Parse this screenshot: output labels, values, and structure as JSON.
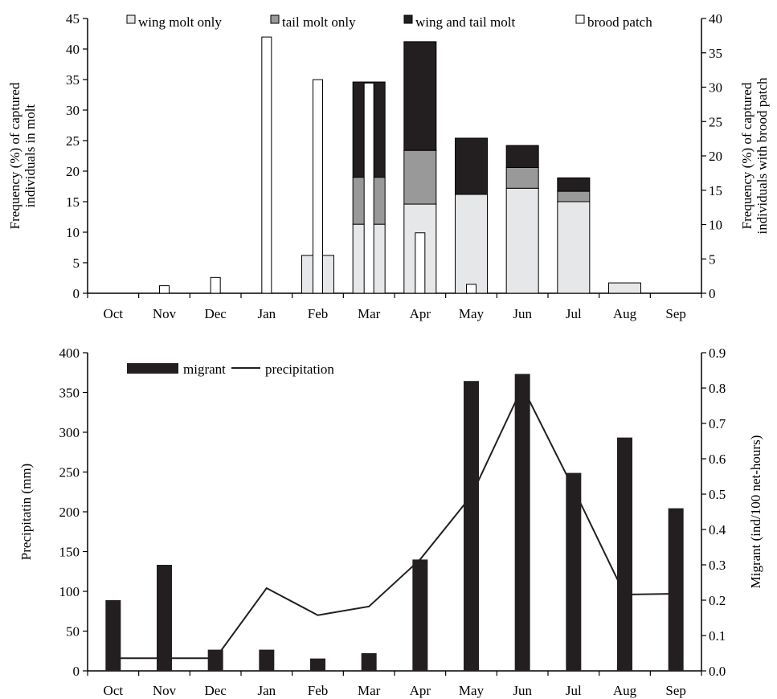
{
  "chart_data": [
    {
      "type": "bar",
      "subtype": "stacked-bar-with-secondary-axis",
      "categories": [
        "Oct",
        "Nov",
        "Dec",
        "Jan",
        "Feb",
        "Mar",
        "Apr",
        "May",
        "Jun",
        "Jul",
        "Aug",
        "Sep"
      ],
      "ylabel": [
        "Frequency (%) of captured",
        "individuals in molt"
      ],
      "y2label": [
        "Frequency (%) of captured",
        "individuals with brood patch"
      ],
      "ylim": [
        0,
        45
      ],
      "y2lim": [
        0,
        40
      ],
      "yticks": [
        0,
        5,
        10,
        15,
        20,
        25,
        30,
        35,
        40,
        45
      ],
      "y2ticks": [
        0,
        5,
        10,
        15,
        20,
        25,
        30,
        35,
        40
      ],
      "grid": false,
      "legend_position": "top",
      "series": [
        {
          "name": "wing molt only",
          "color": "#e6e7e8",
          "values": [
            0,
            0,
            0,
            0,
            6.2,
            11.3,
            14.6,
            16.2,
            17.2,
            15.0,
            1.7,
            0
          ]
        },
        {
          "name": "tail molt only",
          "color": "#999999",
          "values": [
            0,
            0,
            0,
            0,
            0,
            7.7,
            8.8,
            0,
            3.4,
            1.7,
            0,
            0
          ]
        },
        {
          "name": "wing and tail molt",
          "color": "#231f20",
          "values": [
            0,
            0,
            0,
            0,
            0,
            15.6,
            17.8,
            9.2,
            3.6,
            2.2,
            0,
            0
          ]
        },
        {
          "name": "brood patch",
          "color": "#ffffff",
          "axis": "right",
          "values": [
            0,
            1.1,
            2.3,
            37.3,
            31.1,
            30.6,
            8.8,
            1.3,
            0,
            0,
            0,
            0
          ]
        }
      ]
    },
    {
      "type": "bar",
      "subtype": "bar-and-line-dual-axis",
      "categories": [
        "Oct",
        "Nov",
        "Dec",
        "Jan",
        "Feb",
        "Mar",
        "Apr",
        "May",
        "Jun",
        "Jul",
        "Aug",
        "Sep"
      ],
      "ylabel": "Precipitatin (mm)",
      "y2label": "Migrant (ind/100 net-hours)",
      "ylim": [
        0,
        400
      ],
      "y2lim": [
        0,
        0.9
      ],
      "yticks": [
        0,
        50,
        100,
        150,
        200,
        250,
        300,
        350,
        400
      ],
      "y2ticks": [
        "0.0",
        "0.1",
        "0.2",
        "0.3",
        "0.4",
        "0.5",
        "0.6",
        "0.7",
        "0.8",
        "0.9"
      ],
      "grid": false,
      "legend_position": "top-left",
      "series": [
        {
          "name": "migrant",
          "type": "bar",
          "axis": "right",
          "color": "#231f20",
          "values": [
            0.2,
            0.3,
            0.06,
            0.06,
            0.035,
            0.05,
            0.315,
            0.82,
            0.84,
            0.56,
            0.66,
            0.46
          ]
        },
        {
          "name": "precipitation",
          "type": "line",
          "axis": "left",
          "color": "#231f20",
          "values": [
            16,
            16,
            16,
            104,
            70,
            81,
            140,
            220,
            357,
            229,
            96,
            97
          ]
        }
      ]
    }
  ]
}
